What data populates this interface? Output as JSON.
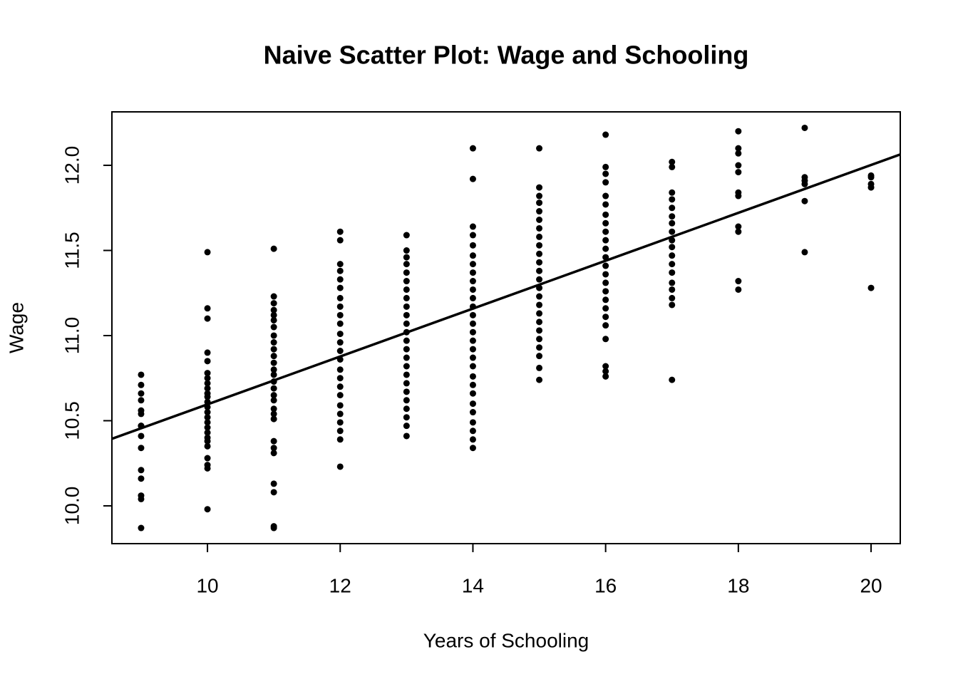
{
  "chart_data": {
    "type": "scatter",
    "title": "Naive Scatter Plot: Wage and Schooling",
    "x_label": "Years of Schooling",
    "y_label": "Wage",
    "color": "#000000",
    "xlim": [
      8.56,
      20.44
    ],
    "ylim": [
      9.778,
      12.314
    ],
    "xticks": [
      10,
      12,
      14,
      16,
      18,
      20
    ],
    "yticks": [
      {
        "value": 10,
        "label": "10.0"
      },
      10.5,
      {
        "value": 11,
        "label": "11.0"
      },
      11.5,
      {
        "value": 12,
        "label": "12.0"
      }
    ],
    "fit_line": {
      "intercept": 9.19,
      "slope": 0.1406
    },
    "x": [
      9,
      9,
      9,
      9,
      9,
      9,
      9,
      9,
      9,
      9,
      9,
      9,
      9,
      9,
      9,
      10,
      10,
      10,
      10,
      10,
      10,
      10,
      10,
      10,
      10,
      10,
      10,
      10,
      10,
      10,
      10,
      10,
      10,
      10,
      10,
      10,
      10,
      10,
      10,
      10,
      11,
      11,
      11,
      11,
      11,
      11,
      11,
      11,
      11,
      11,
      11,
      11,
      11,
      11,
      11,
      11,
      11,
      11,
      11,
      11,
      11,
      11,
      11,
      11,
      11,
      11,
      11,
      11,
      12,
      12,
      12,
      12,
      12,
      12,
      12,
      12,
      12,
      12,
      12,
      12,
      12,
      12,
      12,
      12,
      12,
      12,
      12,
      12,
      12,
      12,
      12,
      12,
      13,
      13,
      13,
      13,
      13,
      13,
      13,
      13,
      13,
      13,
      13,
      13,
      13,
      13,
      13,
      13,
      13,
      13,
      13,
      13,
      13,
      13,
      13,
      13,
      14,
      14,
      14,
      14,
      14,
      14,
      14,
      14,
      14,
      14,
      14,
      14,
      14,
      14,
      14,
      14,
      14,
      14,
      14,
      14,
      14,
      14,
      14,
      14,
      14,
      14,
      14,
      14,
      15,
      15,
      15,
      15,
      15,
      15,
      15,
      15,
      15,
      15,
      15,
      15,
      15,
      15,
      15,
      15,
      15,
      15,
      15,
      15,
      15,
      15,
      15,
      15,
      16,
      16,
      16,
      16,
      16,
      16,
      16,
      16,
      16,
      16,
      16,
      16,
      16,
      16,
      16,
      16,
      16,
      16,
      16,
      16,
      16,
      16,
      16,
      16,
      17,
      17,
      17,
      17,
      17,
      17,
      17,
      17,
      17,
      17,
      17,
      17,
      17,
      17,
      17,
      17,
      17,
      17,
      18,
      18,
      18,
      18,
      18,
      18,
      18,
      18,
      18,
      18,
      18,
      19,
      19,
      19,
      19,
      19,
      19,
      20,
      20,
      20,
      20,
      20
    ],
    "values": [
      10.77,
      10.71,
      10.66,
      10.62,
      10.56,
      10.54,
      10.47,
      10.47,
      10.41,
      10.34,
      10.21,
      10.16,
      10.06,
      10.04,
      9.87,
      11.49,
      11.16,
      11.1,
      10.9,
      10.85,
      10.78,
      10.75,
      10.72,
      10.69,
      10.66,
      10.64,
      10.61,
      10.58,
      10.55,
      10.52,
      10.49,
      10.46,
      10.43,
      10.4,
      10.38,
      10.35,
      10.28,
      10.24,
      10.22,
      9.98,
      11.51,
      11.23,
      11.19,
      11.15,
      11.12,
      11.09,
      11.05,
      11.0,
      10.96,
      10.92,
      10.88,
      10.84,
      10.8,
      10.77,
      10.73,
      10.69,
      10.65,
      10.62,
      10.57,
      10.54,
      10.51,
      10.38,
      10.34,
      10.31,
      10.13,
      10.08,
      9.88,
      9.87,
      11.61,
      11.56,
      11.42,
      11.38,
      11.33,
      11.28,
      11.22,
      11.17,
      11.12,
      11.07,
      11.01,
      10.96,
      10.91,
      10.86,
      10.8,
      10.75,
      10.7,
      10.65,
      10.59,
      10.54,
      10.49,
      10.44,
      10.39,
      10.23,
      11.59,
      11.5,
      11.46,
      11.42,
      11.37,
      11.32,
      11.27,
      11.22,
      11.17,
      11.12,
      11.07,
      11.02,
      10.97,
      10.92,
      10.87,
      10.82,
      10.77,
      10.72,
      10.67,
      10.62,
      10.57,
      10.52,
      10.47,
      10.41,
      12.1,
      11.92,
      11.64,
      11.59,
      11.53,
      11.47,
      11.42,
      11.37,
      11.32,
      11.27,
      11.22,
      11.17,
      11.12,
      11.07,
      11.02,
      10.97,
      10.92,
      10.87,
      10.82,
      10.76,
      10.71,
      10.66,
      10.6,
      10.55,
      10.49,
      10.44,
      10.39,
      10.34,
      12.1,
      11.87,
      11.82,
      11.78,
      11.73,
      11.68,
      11.63,
      11.58,
      11.53,
      11.48,
      11.43,
      11.38,
      11.33,
      11.28,
      11.23,
      11.18,
      11.13,
      11.08,
      11.03,
      10.98,
      10.93,
      10.88,
      10.81,
      10.74,
      12.18,
      11.99,
      11.95,
      11.9,
      11.82,
      11.77,
      11.71,
      11.66,
      11.61,
      11.56,
      11.51,
      11.46,
      11.41,
      11.36,
      11.31,
      11.26,
      11.21,
      11.16,
      11.11,
      11.06,
      10.98,
      10.82,
      10.79,
      10.76,
      12.02,
      11.99,
      11.84,
      11.8,
      11.75,
      11.7,
      11.66,
      11.61,
      11.56,
      11.52,
      11.47,
      11.42,
      11.37,
      11.31,
      11.27,
      11.22,
      11.18,
      10.74,
      12.2,
      12.1,
      12.07,
      12.0,
      11.96,
      11.84,
      11.82,
      11.64,
      11.61,
      11.32,
      11.27,
      12.22,
      11.93,
      11.91,
      11.89,
      11.79,
      11.49,
      11.94,
      11.93,
      11.89,
      11.87,
      11.28
    ]
  }
}
